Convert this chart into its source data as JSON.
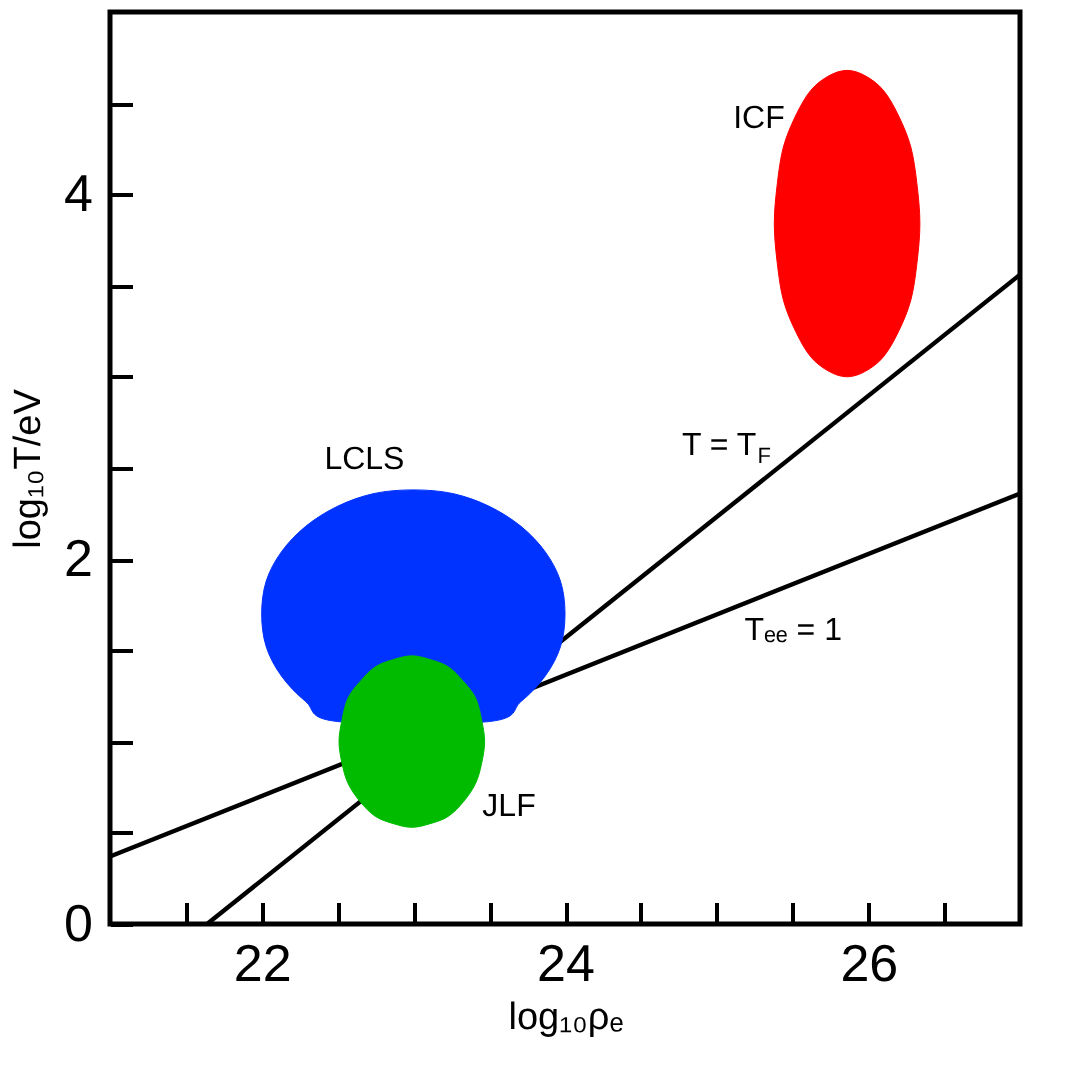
{
  "chart_data": {
    "type": "line",
    "xlabel": "log₁₀ρₑ",
    "ylabel": "log₁₀T/eV",
    "xlim": [
      21,
      27
    ],
    "ylim": [
      0,
      5
    ],
    "xticks": [
      {
        "value": 21.5,
        "label": null
      },
      22,
      {
        "value": 22.5,
        "label": null
      },
      {
        "value": 23,
        "label": null
      },
      {
        "value": 23.5,
        "label": null
      },
      24,
      {
        "value": 24.5,
        "label": null
      },
      {
        "value": 25,
        "label": null
      },
      {
        "value": 25.5,
        "label": null
      },
      26,
      {
        "value": 26.5,
        "label": null
      }
    ],
    "yticks": [
      0,
      {
        "value": 0.5,
        "label": null
      },
      {
        "value": 1,
        "label": null
      },
      {
        "value": 1.5,
        "label": null
      },
      2,
      {
        "value": 2.5,
        "label": null
      },
      {
        "value": 3,
        "label": null
      },
      {
        "value": 3.5,
        "label": null
      },
      4,
      {
        "value": 4.5,
        "label": null
      }
    ],
    "series": [
      {
        "color": "#000000",
        "x": [
          21.64,
          27
        ],
        "values": [
          0,
          3.56
        ]
      },
      {
        "color": "#000000",
        "x": [
          21,
          27
        ],
        "values": [
          0.37,
          2.36
        ]
      },
      {
        "type": "area",
        "color": "#0033ff",
        "x": [
          22.0,
          22.03,
          22.13,
          22.29,
          22.5,
          22.74,
          23.0,
          23.26,
          23.5,
          23.71,
          23.87,
          23.97,
          24.0,
          23.97,
          23.87,
          23.71,
          23.5,
          23.26,
          23.0,
          22.74,
          22.5,
          22.29,
          22.13,
          22.03
        ],
        "values": [
          1.7,
          1.88,
          2.04,
          2.18,
          2.29,
          2.36,
          2.38,
          2.36,
          2.29,
          2.18,
          2.04,
          1.88,
          1.7,
          1.52,
          1.36,
          1.22,
          1.11,
          null,
          null,
          null,
          1.11,
          1.22,
          1.36,
          1.52
        ]
      },
      {
        "type": "area",
        "color": "#00bb00",
        "x": [
          22.51,
          22.53,
          22.57,
          22.65,
          22.75,
          22.87,
          22.99,
          23.11,
          23.23,
          23.33,
          23.41,
          23.45,
          23.47,
          23.45,
          23.41,
          23.33,
          23.23,
          23.11,
          22.99,
          22.87,
          22.75,
          22.65,
          22.57,
          22.53
        ],
        "values": [
          1.0,
          1.12,
          1.24,
          1.33,
          1.41,
          1.45,
          1.47,
          1.45,
          1.41,
          1.33,
          1.24,
          1.12,
          1.0,
          0.88,
          0.77,
          0.67,
          0.59,
          0.55,
          0.53,
          0.55,
          0.59,
          0.67,
          0.77,
          0.88
        ]
      },
      {
        "type": "area",
        "color": "#ff0000",
        "x": [
          25.38,
          25.4,
          25.44,
          25.52,
          25.62,
          25.74,
          25.86,
          25.98,
          26.1,
          26.2,
          26.28,
          26.32,
          26.34,
          26.32,
          26.28,
          26.2,
          26.1,
          25.98,
          25.86,
          25.74,
          25.62,
          25.52,
          25.44,
          25.4
        ],
        "values": [
          3.84,
          4.06,
          4.26,
          4.43,
          4.57,
          4.65,
          4.68,
          4.65,
          4.57,
          4.43,
          4.26,
          4.06,
          3.84,
          3.62,
          3.42,
          3.25,
          3.11,
          3.03,
          3.0,
          3.03,
          3.11,
          3.25,
          3.42,
          3.62
        ]
      }
    ],
    "annotations": [
      {
        "text": "ICF",
        "x": 25.44,
        "y": 4.26
      },
      {
        "text": "LCLS",
        "x": 22.74,
        "y": 2.36
      },
      {
        "text": "JLF",
        "x": 23.41,
        "y": 0.77
      },
      {
        "text": "T = T$_{F}$",
        "x": 25.27,
        "y": 2.41
      },
      {
        "text": "Tₑₑ = 1",
        "x": 25.4,
        "y": 1.83
      }
    ]
  }
}
